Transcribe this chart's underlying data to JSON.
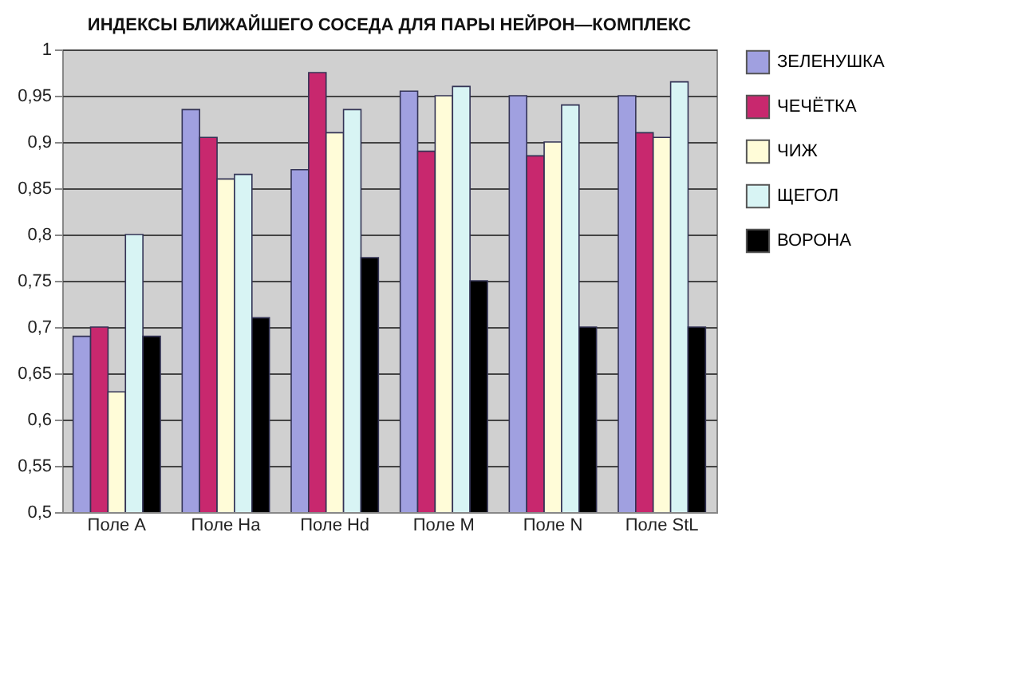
{
  "chart_data": {
    "type": "bar",
    "title": "ИНДЕКСЫ БЛИЖАЙШЕГО СОСЕДА ДЛЯ ПАРЫ НЕЙРОН—КОМПЛЕКС",
    "categories": [
      "Поле А",
      "Поле Ha",
      "Поле Hd",
      "Поле М",
      "Поле N",
      "Поле StL"
    ],
    "series": [
      {
        "name": "ЗЕЛЕНУШКА",
        "color": "#a0a0e0",
        "values": [
          0.69,
          0.935,
          0.87,
          0.955,
          0.95,
          0.95
        ]
      },
      {
        "name": "ЧЕЧЁТКА",
        "color": "#c8286e",
        "values": [
          0.7,
          0.905,
          0.975,
          0.89,
          0.885,
          0.91
        ]
      },
      {
        "name": "ЧИЖ",
        "color": "#fffcd8",
        "values": [
          0.63,
          0.86,
          0.91,
          0.95,
          0.9,
          0.905
        ]
      },
      {
        "name": "ЩЕГОЛ",
        "color": "#d8f4f4",
        "values": [
          0.8,
          0.865,
          0.935,
          0.96,
          0.94,
          0.965
        ]
      },
      {
        "name": "ВОРОНА",
        "color": "#000000",
        "values": [
          0.69,
          0.71,
          0.775,
          0.75,
          0.7,
          0.7
        ]
      }
    ],
    "ylim": [
      0.5,
      1
    ],
    "yticks": [
      {
        "value": 0.5,
        "label": "0,5"
      },
      {
        "value": 0.55,
        "label": "0,55"
      },
      {
        "value": 0.6,
        "label": "0,6"
      },
      {
        "value": 0.65,
        "label": "0,65"
      },
      {
        "value": 0.7,
        "label": "0,7"
      },
      {
        "value": 0.75,
        "label": "0,75"
      },
      {
        "value": 0.8,
        "label": "0,8"
      },
      {
        "value": 0.85,
        "label": "0,85"
      },
      {
        "value": 0.9,
        "label": "0,9"
      },
      {
        "value": 0.95,
        "label": "0,95"
      },
      {
        "value": 1,
        "label": "1"
      }
    ],
    "grid": "y",
    "legend": "right"
  }
}
